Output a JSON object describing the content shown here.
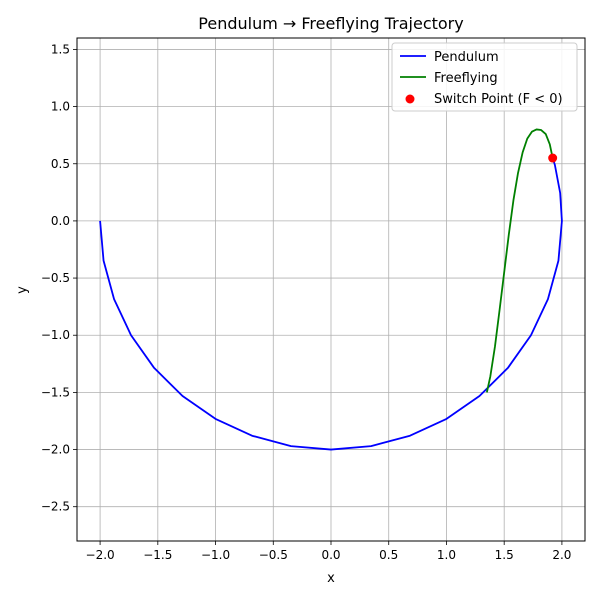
{
  "chart_data": {
    "type": "line",
    "title": "Pendulum → Freeflying Trajectory",
    "xlabel": "x",
    "ylabel": "y",
    "xlim": [
      -2.2,
      2.2
    ],
    "ylim": [
      -2.8,
      1.6
    ],
    "xticks": [
      -2.0,
      -1.5,
      -1.0,
      -0.5,
      0.0,
      0.5,
      1.0,
      1.5,
      2.0
    ],
    "xtick_labels": [
      "−2.0",
      "−1.5",
      "−1.0",
      "−0.5",
      "0.0",
      "0.5",
      "1.0",
      "1.5",
      "2.0"
    ],
    "yticks": [
      -2.5,
      -2.0,
      -1.5,
      -1.0,
      -0.5,
      0.0,
      0.5,
      1.0,
      1.5
    ],
    "ytick_labels": [
      "−2.5",
      "−2.0",
      "−1.5",
      "−1.0",
      "−0.5",
      "0.0",
      "0.5",
      "1.0",
      "1.5"
    ],
    "grid": true,
    "legend_position": "top-right",
    "series": [
      {
        "name": "Pendulum",
        "kind": "line",
        "color": "#0000ff",
        "x": [
          -2.0,
          -1.97,
          -1.879,
          -1.732,
          -1.532,
          -1.286,
          -1.0,
          -0.684,
          -0.347,
          0.0,
          0.347,
          0.684,
          1.0,
          1.286,
          1.532,
          1.732,
          1.879,
          1.97,
          2.0,
          1.985,
          1.939,
          1.92
        ],
        "y": [
          0.0,
          -0.347,
          -0.684,
          -1.0,
          -1.286,
          -1.532,
          -1.732,
          -1.879,
          -1.97,
          -2.0,
          -1.97,
          -1.879,
          -1.732,
          -1.532,
          -1.286,
          -1.0,
          -0.684,
          -0.347,
          0.0,
          0.244,
          0.49,
          0.55
        ]
      },
      {
        "name": "Freeflying",
        "kind": "line",
        "color": "#008000",
        "x": [
          1.92,
          1.895,
          1.86,
          1.82,
          1.78,
          1.74,
          1.7,
          1.66,
          1.62,
          1.58,
          1.54,
          1.5,
          1.46,
          1.42,
          1.38,
          1.35
        ],
        "y": [
          0.55,
          0.67,
          0.76,
          0.795,
          0.8,
          0.78,
          0.72,
          0.6,
          0.42,
          0.18,
          -0.12,
          -0.45,
          -0.78,
          -1.1,
          -1.36,
          -1.5
        ]
      },
      {
        "name": "Switch Point (F < 0)",
        "kind": "scatter",
        "color": "#ff0000",
        "x": [
          1.92
        ],
        "y": [
          0.55
        ]
      }
    ]
  }
}
